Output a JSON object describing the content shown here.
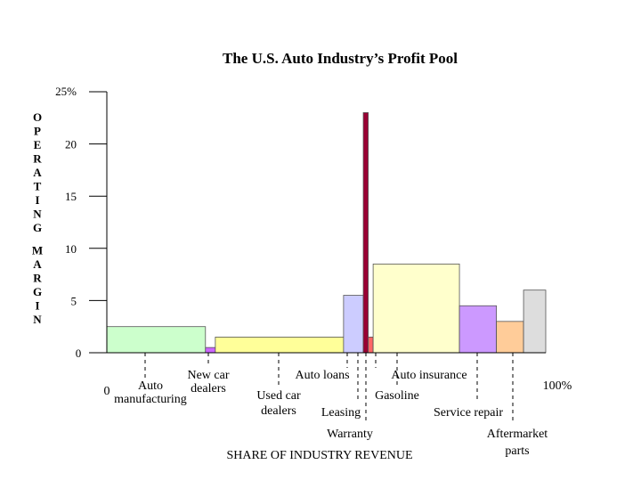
{
  "chart_data": {
    "type": "bar",
    "title": "The U.S. Auto Industry’s Profit Pool",
    "ylabel": "OPERATING MARGIN",
    "xlabel": "SHARE OF INDUSTRY REVENUE",
    "ylim": [
      0,
      25
    ],
    "y_ticks": [
      "25%",
      "20",
      "15",
      "10",
      "5",
      "0"
    ],
    "x_start_label": "0",
    "x_end_label": "100%",
    "grid": false,
    "segments": [
      {
        "name": "Auto manufacturing",
        "label_lines": [
          "Auto",
          "manufacturing"
        ],
        "share": 40,
        "margin": 2.5,
        "color": "#ccffcc"
      },
      {
        "name": "New car dealers",
        "label_lines": [
          "New car",
          "dealers"
        ],
        "share": 4,
        "margin": 0.5,
        "color": "#cc66ff"
      },
      {
        "name": "Used car dealers",
        "label_lines": [
          "Used car",
          "dealers"
        ],
        "share": 52,
        "margin": 1.5,
        "color": "#ffff99"
      },
      {
        "name": "Auto loans",
        "label_lines": [
          "Auto loans"
        ],
        "share": 8,
        "margin": 5.5,
        "color": "#ccccff"
      },
      {
        "name": "Leasing",
        "label_lines": [
          "Leasing"
        ],
        "share": 2,
        "margin": 23,
        "color": "#990033"
      },
      {
        "name": "Warranty",
        "label_lines": [
          "Warranty"
        ],
        "share": 2,
        "margin": 1.5,
        "color": "#ff6666"
      },
      {
        "name": "Auto insurance",
        "label_lines": [
          "Auto insurance"
        ],
        "share": 35,
        "margin": 8.5,
        "color": "#ffffcc"
      },
      {
        "name": "Gasoline",
        "label_lines": [
          "Gasoline"
        ],
        "share": 15,
        "margin": 4.5,
        "color": "#cc99ff"
      },
      {
        "name": "Service repair",
        "label_lines": [
          "Service repair"
        ],
        "share": 11,
        "margin": 3,
        "color": "#ffcc99"
      },
      {
        "name": "Aftermarket parts",
        "label_lines": [
          "Aftermarket",
          "parts"
        ],
        "share": 9,
        "margin": 6,
        "color": "#dddddd"
      }
    ]
  }
}
